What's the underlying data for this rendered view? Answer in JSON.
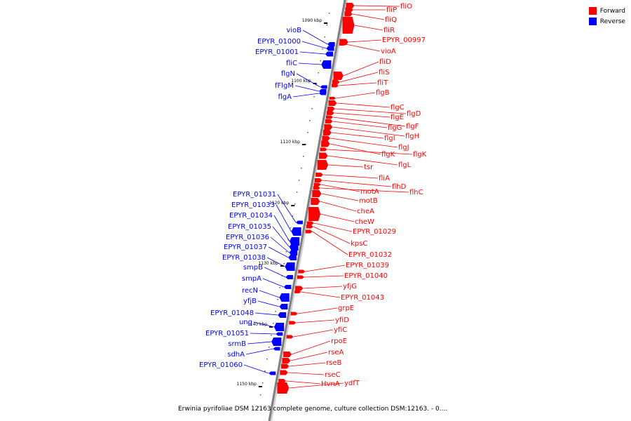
{
  "caption": "Erwinia pyrifoliae DSM 12163 complete genome, culture collection DSM:12163. - 0....",
  "legend": [
    {
      "label": "Forward",
      "color": "#ff0000"
    },
    {
      "label": "Reverse",
      "color": "#0000ff"
    }
  ],
  "kbp_ticks": [
    "1090 kbp",
    "1100 kbp",
    "1110 kbp",
    "1120 kbp",
    "1130 kbp",
    "1140 kbp",
    "1150 kbp"
  ],
  "forward_genes": [
    "fliO",
    "fliP",
    "fliQ",
    "fliR",
    "EPYR_00997",
    "vioA",
    "fliD",
    "fliS",
    "fliT",
    "flgB",
    "flgC",
    "flgD",
    "flgE",
    "flgF",
    "flgG",
    "flgH",
    "flgI",
    "flgJ",
    "flgK",
    "flgK",
    "flgL",
    "tsr",
    "fliA",
    "flhD",
    "motA",
    "flhC",
    "motB",
    "cheA",
    "cheW",
    "EPYR_01029",
    "kpsC",
    "EPYR_01032",
    "EPYR_01039",
    "EPYR_01040",
    "yfjG",
    "EPYR_01043",
    "grpE",
    "yfiD",
    "yfiC",
    "rpoE",
    "rseA",
    "rseB",
    "rseC",
    "ydfT",
    "HvnA"
  ],
  "reverse_genes": [
    "vioB",
    "EPYR_01000",
    "EPYR_01001",
    "fliC",
    "flgN",
    "fFlgM",
    "flgA",
    "EPYR_01031",
    "EPYR_01033",
    "EPYR_01034",
    "EPYR_01035",
    "EPYR_01036",
    "EPYR_01037",
    "EPYR_01038",
    "smpB",
    "smpA",
    "recN",
    "yfjB",
    "EPYR_01048",
    "ung",
    "EPYR_01051",
    "srmB",
    "sdhA",
    "EPYR_01060"
  ]
}
